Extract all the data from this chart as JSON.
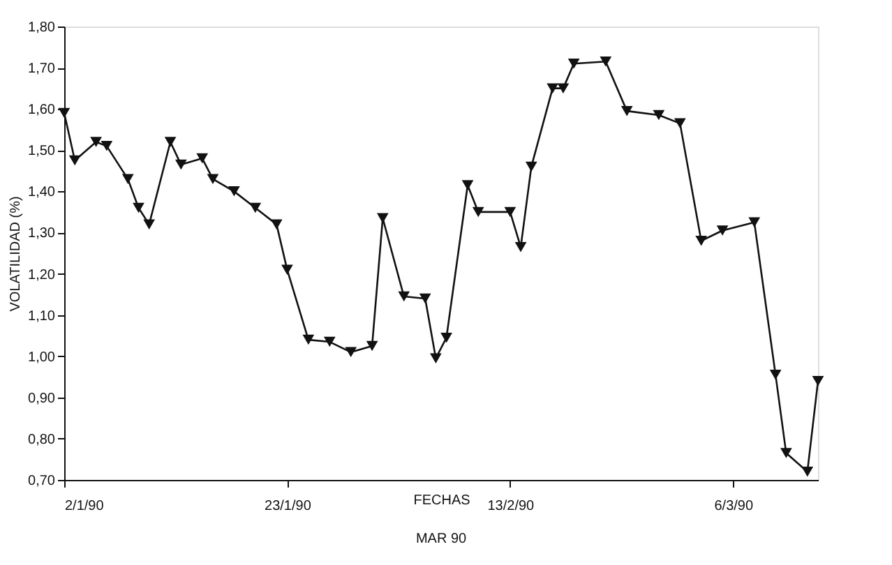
{
  "chart_data": {
    "type": "line",
    "xlabel": "FECHAS",
    "ylabel": "VOLATILIDAD (%)",
    "annotations": [
      "MAR 90"
    ],
    "x": [
      "1990-01-02",
      "1990-01-03",
      "1990-01-05",
      "1990-01-06",
      "1990-01-08",
      "1990-01-09",
      "1990-01-10",
      "1990-01-12",
      "1990-01-13",
      "1990-01-15",
      "1990-01-16",
      "1990-01-18",
      "1990-01-20",
      "1990-01-22",
      "1990-01-23",
      "1990-01-25",
      "1990-01-27",
      "1990-01-29",
      "1990-01-31",
      "1990-02-01",
      "1990-02-03",
      "1990-02-05",
      "1990-02-06",
      "1990-02-07",
      "1990-02-09",
      "1990-02-10",
      "1990-02-13",
      "1990-02-14",
      "1990-02-15",
      "1990-02-17",
      "1990-02-18",
      "1990-02-19",
      "1990-02-22",
      "1990-02-24",
      "1990-02-27",
      "1990-03-01",
      "1990-03-03",
      "1990-03-05",
      "1990-03-08",
      "1990-03-10",
      "1990-03-11",
      "1990-03-13",
      "1990-03-14"
    ],
    "series": [
      {
        "color": "#111111",
        "values": [
          1.59,
          1.475,
          1.52,
          1.51,
          1.43,
          1.36,
          1.32,
          1.52,
          1.465,
          1.48,
          1.43,
          1.4,
          1.36,
          1.32,
          1.21,
          1.04,
          1.035,
          1.01,
          1.025,
          1.335,
          1.145,
          1.14,
          0.995,
          1.045,
          1.415,
          1.35,
          1.35,
          1.265,
          1.46,
          1.65,
          1.65,
          1.71,
          1.715,
          1.595,
          1.585,
          1.565,
          1.28,
          1.305,
          1.325,
          0.955,
          0.765,
          0.72,
          0.94
        ]
      }
    ],
    "xlim": [
      "1990-01-02",
      "1990-03-14"
    ],
    "xticks": [
      {
        "value": "1990-01-02",
        "label": "2/1/90"
      },
      {
        "value": "1990-01-23",
        "label": "23/1/90"
      },
      {
        "value": "1990-02-13",
        "label": "13/2/90"
      },
      {
        "value": "1990-03-06",
        "label": "6/3/90"
      }
    ],
    "ylim": [
      0.7,
      1.8
    ],
    "yticks": [
      {
        "value": 0.7,
        "label": "0,70"
      },
      {
        "value": 0.8,
        "label": "0,80"
      },
      {
        "value": 0.9,
        "label": "0,90"
      },
      {
        "value": 1.0,
        "label": "1,00"
      },
      {
        "value": 1.1,
        "label": "1,10"
      },
      {
        "value": 1.2,
        "label": "1,20"
      },
      {
        "value": 1.3,
        "label": "1,30"
      },
      {
        "value": 1.4,
        "label": "1,40"
      },
      {
        "value": 1.5,
        "label": "1,50"
      },
      {
        "value": 1.6,
        "label": "1,60"
      },
      {
        "value": 1.7,
        "label": "1,70"
      },
      {
        "value": 1.8,
        "label": "1,80"
      }
    ],
    "grid": false,
    "marker": "triangle",
    "line_style": "solid"
  }
}
